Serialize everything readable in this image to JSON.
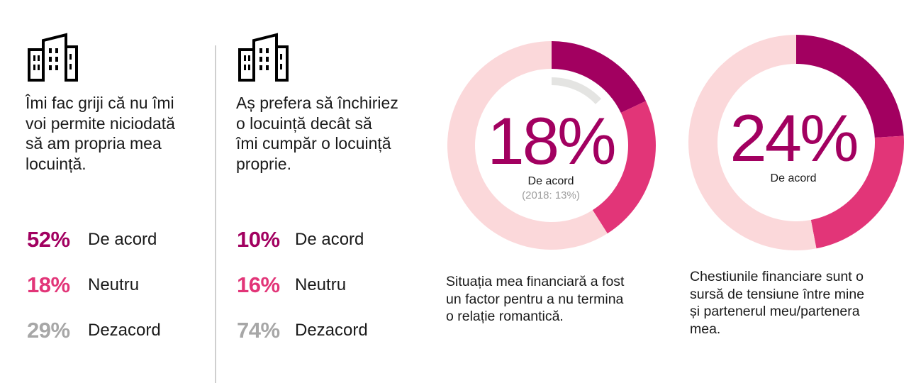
{
  "colors": {
    "agree": "#a20060",
    "neutral": "#e23578",
    "disagree": "#a7a7a7",
    "donut_bg": "#fbd8da",
    "donut_prev": "#e4e4e2",
    "text": "#1a1a1a"
  },
  "icons": [
    "building-icon"
  ],
  "panels": [
    {
      "statement": [
        "Îmi fac griji că nu îmi",
        "voi permite niciodată",
        "să am propria mea",
        "locuință."
      ],
      "stats": [
        {
          "pct": "52%",
          "label": "De acord",
          "kind": "agree"
        },
        {
          "pct": "18%",
          "label": "Neutru",
          "kind": "neutral"
        },
        {
          "pct": "29%",
          "label": "Dezacord",
          "kind": "disagree"
        }
      ]
    },
    {
      "statement": [
        "Aș prefera să închiriez",
        "o locuință decât să",
        "îmi cumpăr o locuință",
        "proprie."
      ],
      "stats": [
        {
          "pct": "10%",
          "label": "De acord",
          "kind": "agree"
        },
        {
          "pct": "16%",
          "label": "Neutru",
          "kind": "neutral"
        },
        {
          "pct": "74%",
          "label": "Dezacord",
          "kind": "disagree"
        }
      ]
    }
  ],
  "donuts": [
    {
      "big_pct": "18%",
      "label": "De acord",
      "note": "(2018: 13%)",
      "caption": [
        "Situația mea financiară a fost",
        "un factor pentru a nu termina",
        "o relație romantică."
      ]
    },
    {
      "big_pct": "24%",
      "label": "De acord",
      "note": "",
      "caption": [
        "Chestiunile financiare sunt o",
        "sursă de tensiune între mine",
        "și partenerul meu/partenera",
        "mea."
      ]
    }
  ],
  "chart_data": [
    {
      "type": "pie",
      "categories": [
        "De acord",
        "Neutru",
        "Dezacord"
      ],
      "values": [
        18,
        23,
        59
      ],
      "previous": {
        "De acord": 13
      }
    },
    {
      "type": "pie",
      "categories": [
        "De acord",
        "Neutru",
        "Dezacord"
      ],
      "values": [
        24,
        23,
        53
      ]
    }
  ]
}
